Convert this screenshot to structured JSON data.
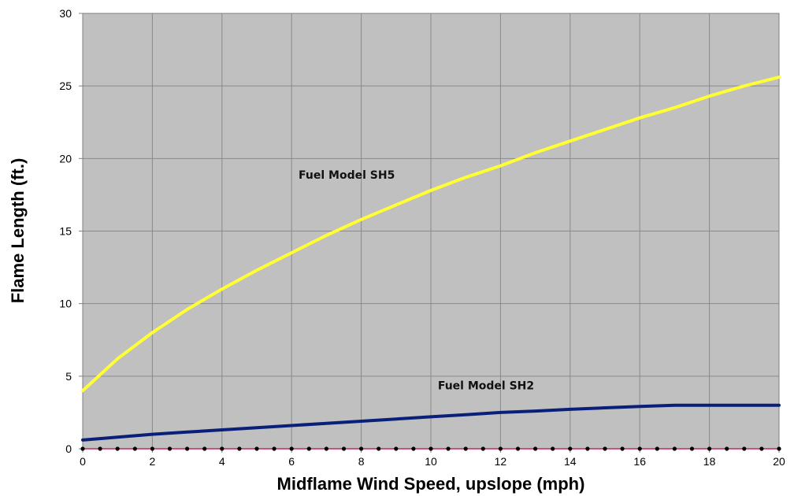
{
  "chart_data": {
    "type": "line",
    "xlabel": "Midflame Wind Speed, upslope (mph)",
    "ylabel": "Flame Length (ft.)",
    "xlim": [
      0,
      20
    ],
    "ylim": [
      0,
      30
    ],
    "x_ticks": [
      0,
      2,
      4,
      6,
      8,
      10,
      12,
      14,
      16,
      18,
      20
    ],
    "y_ticks": [
      0,
      5,
      10,
      15,
      20,
      25,
      30
    ],
    "grid": true,
    "plot_background": "#c0c0c0",
    "gridline_color": "#8a8a8a",
    "series": [
      {
        "name": "Fuel Model SH5",
        "color": "#ffff33",
        "x": [
          0,
          1,
          2,
          3,
          4,
          5,
          6,
          7,
          8,
          9,
          10,
          11,
          12,
          13,
          14,
          15,
          16,
          17,
          18,
          19,
          20
        ],
        "values": [
          4.0,
          6.2,
          8.0,
          9.6,
          11.0,
          12.3,
          13.5,
          14.7,
          15.8,
          16.8,
          17.8,
          18.7,
          19.5,
          20.4,
          21.2,
          22.0,
          22.8,
          23.5,
          24.3,
          25.0,
          25.6
        ]
      },
      {
        "name": "Fuel Model SH2",
        "color": "#0a1f7a",
        "x": [
          0,
          1,
          2,
          3,
          4,
          5,
          6,
          7,
          8,
          9,
          10,
          11,
          12,
          13,
          14,
          15,
          16,
          17,
          18,
          19,
          20
        ],
        "values": [
          0.6,
          0.8,
          1.0,
          1.15,
          1.3,
          1.45,
          1.6,
          1.75,
          1.9,
          2.05,
          2.2,
          2.35,
          2.5,
          2.6,
          2.72,
          2.82,
          2.92,
          3.0,
          3.0,
          3.0,
          3.0
        ]
      },
      {
        "name": "",
        "color": "#000000",
        "line_color": "#cc2255",
        "markers": true,
        "x": [
          0,
          0.5,
          1,
          1.5,
          2,
          2.5,
          3,
          3.5,
          4,
          4.5,
          5,
          5.5,
          6,
          6.5,
          7,
          7.5,
          8,
          8.5,
          9,
          9.5,
          10,
          10.5,
          11,
          11.5,
          12,
          12.5,
          13,
          13.5,
          14,
          14.5,
          15,
          15.5,
          16,
          16.5,
          17,
          17.5,
          18,
          18.5,
          19,
          19.5,
          20
        ],
        "values": [
          0,
          0,
          0,
          0,
          0,
          0,
          0,
          0,
          0,
          0,
          0,
          0,
          0,
          0,
          0,
          0,
          0,
          0,
          0,
          0,
          0,
          0,
          0,
          0,
          0,
          0,
          0,
          0,
          0,
          0,
          0,
          0,
          0,
          0,
          0,
          0,
          0,
          0,
          0,
          0,
          0
        ]
      }
    ],
    "annotations": [
      {
        "text": "Fuel Model SH5",
        "x": 6.2,
        "y": 18.6
      },
      {
        "text": "Fuel Model SH2",
        "x": 10.2,
        "y": 4.1
      }
    ]
  }
}
